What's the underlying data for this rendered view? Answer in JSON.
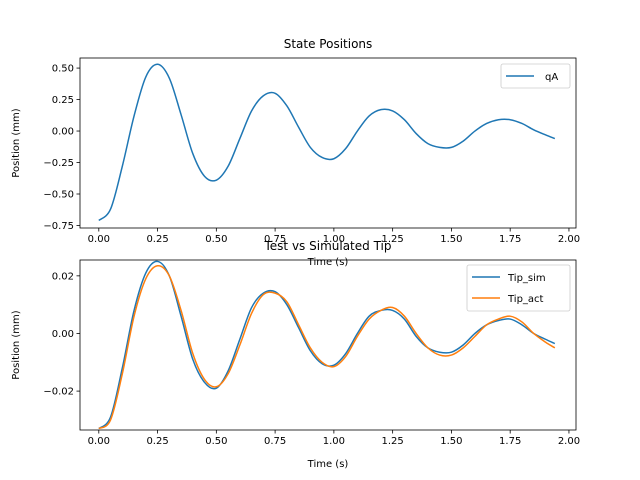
{
  "chart_data": [
    {
      "type": "line",
      "title": "State Positions",
      "xlabel": "Time (s)",
      "ylabel": "Position (mm)",
      "xlim": [
        -0.08,
        2.03
      ],
      "ylim": [
        -0.77,
        0.58
      ],
      "xticks": [
        "0.00",
        "0.25",
        "0.50",
        "0.75",
        "1.00",
        "1.25",
        "1.50",
        "1.75",
        "2.00"
      ],
      "xtick_values": [
        0,
        0.25,
        0.5,
        0.75,
        1.0,
        1.25,
        1.5,
        1.75,
        2.0
      ],
      "yticks": [
        "0.50",
        "0.25",
        "0.00",
        "−0.25",
        "−0.50",
        "−0.75"
      ],
      "ytick_values": [
        0.5,
        0.25,
        0.0,
        -0.25,
        -0.5,
        -0.75
      ],
      "legend_position": "top-right",
      "grid": false,
      "series": [
        {
          "name": "qA",
          "color": "#1f77b4",
          "x": [
            0.0,
            0.05,
            0.1,
            0.15,
            0.2,
            0.25,
            0.3,
            0.35,
            0.4,
            0.45,
            0.5,
            0.55,
            0.6,
            0.65,
            0.7,
            0.75,
            0.8,
            0.85,
            0.9,
            0.95,
            1.0,
            1.05,
            1.1,
            1.15,
            1.2,
            1.25,
            1.3,
            1.35,
            1.4,
            1.45,
            1.5,
            1.55,
            1.6,
            1.65,
            1.7,
            1.75,
            1.8,
            1.85,
            1.9,
            1.94
          ],
          "y": [
            -0.71,
            -0.62,
            -0.28,
            0.12,
            0.43,
            0.53,
            0.42,
            0.13,
            -0.18,
            -0.36,
            -0.39,
            -0.28,
            -0.06,
            0.16,
            0.28,
            0.3,
            0.2,
            0.03,
            -0.13,
            -0.21,
            -0.22,
            -0.14,
            0.0,
            0.12,
            0.17,
            0.16,
            0.09,
            -0.02,
            -0.1,
            -0.13,
            -0.13,
            -0.08,
            0.0,
            0.06,
            0.09,
            0.09,
            0.06,
            0.01,
            -0.03,
            -0.06
          ]
        }
      ]
    },
    {
      "type": "line",
      "title": "Test vs Simulated Tip",
      "xlabel": "Time (s)",
      "ylabel": "Position (mm)",
      "xlim": [
        -0.08,
        2.03
      ],
      "ylim": [
        -0.0335,
        0.0255
      ],
      "xticks": [
        "0.00",
        "0.25",
        "0.50",
        "0.75",
        "1.00",
        "1.25",
        "1.50",
        "1.75",
        "2.00"
      ],
      "xtick_values": [
        0,
        0.25,
        0.5,
        0.75,
        1.0,
        1.25,
        1.5,
        1.75,
        2.0
      ],
      "yticks": [
        "0.02",
        "0.00",
        "−0.02"
      ],
      "ytick_values": [
        0.02,
        0.0,
        -0.02
      ],
      "legend_position": "top-right",
      "grid": false,
      "series": [
        {
          "name": "Tip_sim",
          "color": "#1f77b4",
          "x": [
            0.0,
            0.05,
            0.1,
            0.15,
            0.2,
            0.25,
            0.3,
            0.35,
            0.4,
            0.45,
            0.5,
            0.55,
            0.6,
            0.65,
            0.7,
            0.75,
            0.8,
            0.85,
            0.9,
            0.95,
            1.0,
            1.05,
            1.1,
            1.15,
            1.2,
            1.25,
            1.3,
            1.35,
            1.4,
            1.45,
            1.5,
            1.55,
            1.6,
            1.65,
            1.7,
            1.75,
            1.8,
            1.85,
            1.9,
            1.94
          ],
          "y": [
            -0.033,
            -0.029,
            -0.012,
            0.008,
            0.021,
            0.025,
            0.02,
            0.006,
            -0.009,
            -0.017,
            -0.019,
            -0.013,
            -0.002,
            0.009,
            0.014,
            0.0145,
            0.01,
            0.002,
            -0.006,
            -0.0105,
            -0.011,
            -0.007,
            0.0,
            0.006,
            0.008,
            0.008,
            0.005,
            -0.001,
            -0.005,
            -0.0065,
            -0.0065,
            -0.004,
            0.0,
            0.003,
            0.0045,
            0.005,
            0.003,
            0.0,
            -0.002,
            -0.0035
          ]
        },
        {
          "name": "Tip_act",
          "color": "#ff7f0e",
          "x": [
            0.0,
            0.05,
            0.1,
            0.15,
            0.2,
            0.25,
            0.3,
            0.35,
            0.4,
            0.45,
            0.5,
            0.55,
            0.6,
            0.65,
            0.7,
            0.75,
            0.8,
            0.85,
            0.9,
            0.95,
            1.0,
            1.05,
            1.1,
            1.15,
            1.2,
            1.25,
            1.3,
            1.35,
            1.4,
            1.45,
            1.5,
            1.55,
            1.6,
            1.65,
            1.7,
            1.75,
            1.8,
            1.85,
            1.9,
            1.94
          ],
          "y": [
            -0.033,
            -0.03,
            -0.014,
            0.006,
            0.019,
            0.0235,
            0.02,
            0.008,
            -0.007,
            -0.016,
            -0.0185,
            -0.014,
            -0.004,
            0.007,
            0.0135,
            0.014,
            0.011,
            0.003,
            -0.005,
            -0.01,
            -0.0115,
            -0.008,
            -0.001,
            0.005,
            0.008,
            0.009,
            0.006,
            0.0,
            -0.005,
            -0.0075,
            -0.0075,
            -0.005,
            -0.001,
            0.003,
            0.005,
            0.006,
            0.004,
            0.0,
            -0.003,
            -0.005
          ]
        }
      ]
    }
  ]
}
